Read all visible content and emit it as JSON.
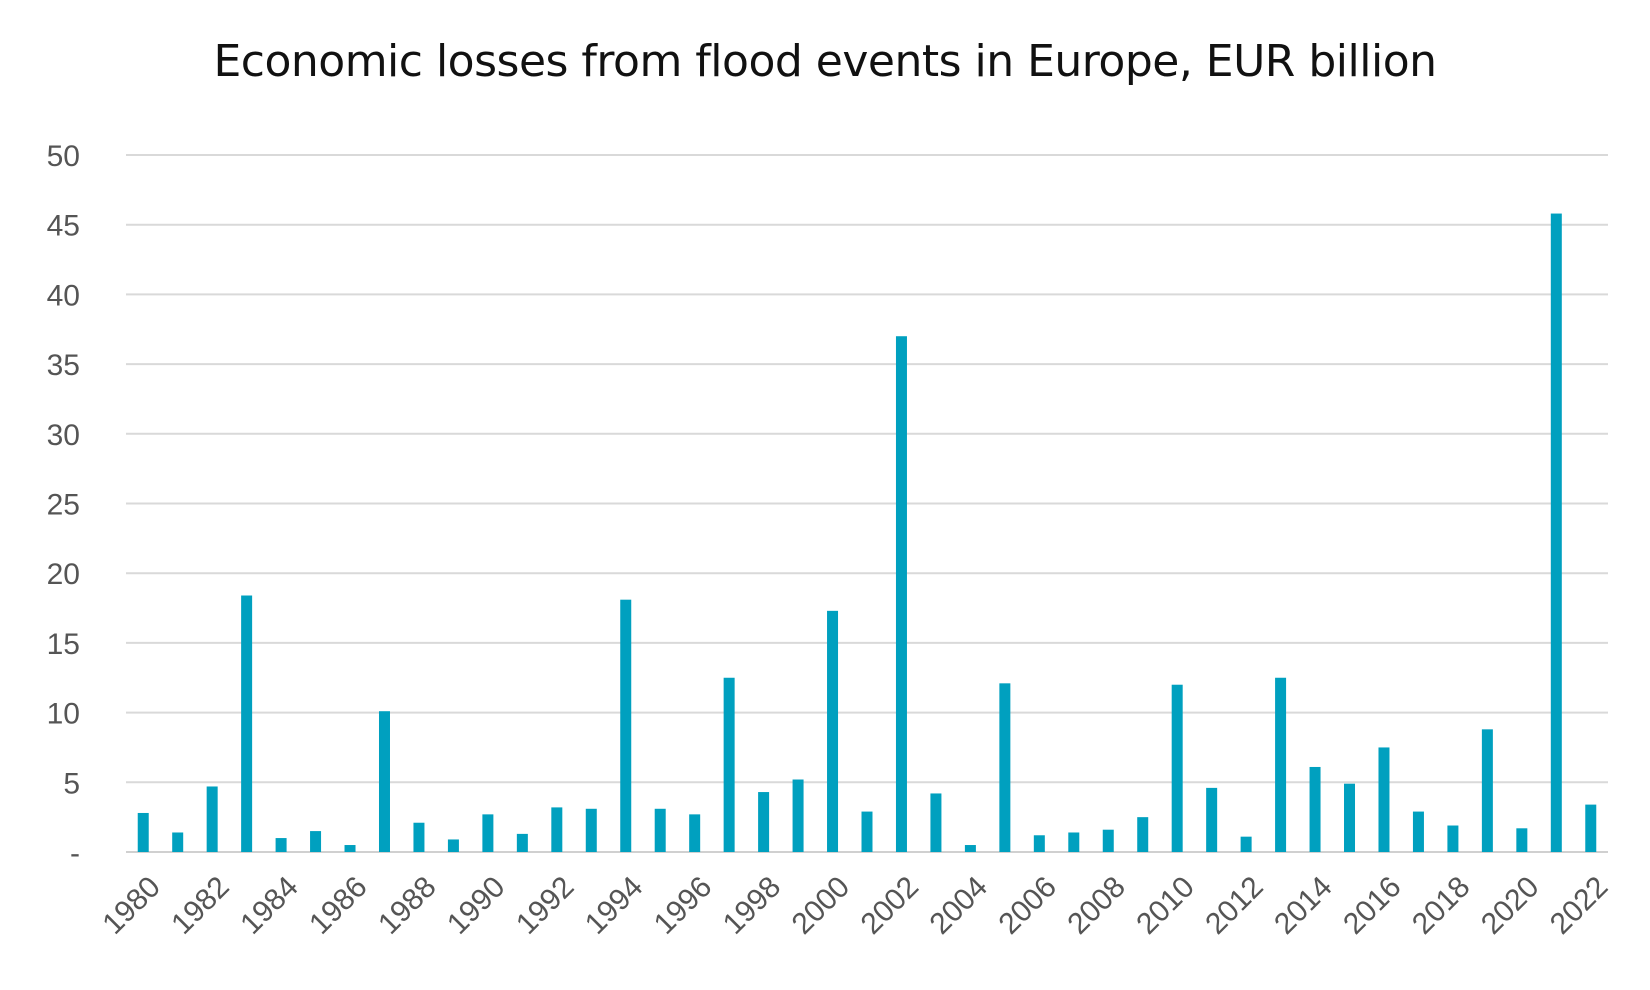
{
  "chart_data": {
    "type": "bar",
    "title": "Economic losses from flood events in Europe, EUR billion",
    "xlabel": "",
    "ylabel": "",
    "categories": [
      "1980",
      "1981",
      "1982",
      "1983",
      "1984",
      "1985",
      "1986",
      "1987",
      "1988",
      "1989",
      "1990",
      "1991",
      "1992",
      "1993",
      "1994",
      "1995",
      "1996",
      "1997",
      "1998",
      "1999",
      "2000",
      "2001",
      "2002",
      "2003",
      "2004",
      "2005",
      "2006",
      "2007",
      "2008",
      "2009",
      "2010",
      "2011",
      "2012",
      "2013",
      "2014",
      "2015",
      "2016",
      "2017",
      "2018",
      "2019",
      "2020",
      "2021",
      "2022"
    ],
    "x_tick_labels": [
      "1980",
      "1982",
      "1984",
      "1986",
      "1988",
      "1990",
      "1992",
      "1994",
      "1996",
      "1998",
      "2000",
      "2002",
      "2004",
      "2006",
      "2008",
      "2010",
      "2012",
      "2014",
      "2016",
      "2018",
      "2020",
      "2022"
    ],
    "values": [
      2.8,
      1.4,
      4.7,
      18.4,
      1.0,
      1.5,
      0.5,
      10.1,
      2.1,
      0.9,
      2.7,
      1.3,
      3.2,
      3.1,
      18.1,
      3.1,
      2.7,
      12.5,
      4.3,
      5.2,
      17.3,
      2.9,
      37.0,
      4.2,
      0.5,
      12.1,
      1.2,
      1.4,
      1.6,
      2.5,
      12.0,
      4.6,
      1.1,
      12.5,
      6.1,
      4.9,
      7.5,
      2.9,
      1.9,
      8.8,
      1.7,
      45.8,
      3.4
    ],
    "ylim": [
      0,
      50
    ],
    "y_ticks": [
      0,
      5,
      10,
      15,
      20,
      25,
      30,
      35,
      40,
      45,
      50
    ],
    "y_tick_labels": [
      "-",
      "5",
      "10",
      "15",
      "20",
      "25",
      "30",
      "35",
      "40",
      "45",
      "50"
    ],
    "grid": true,
    "legend": "none",
    "bar_color": "#00a0bf"
  }
}
